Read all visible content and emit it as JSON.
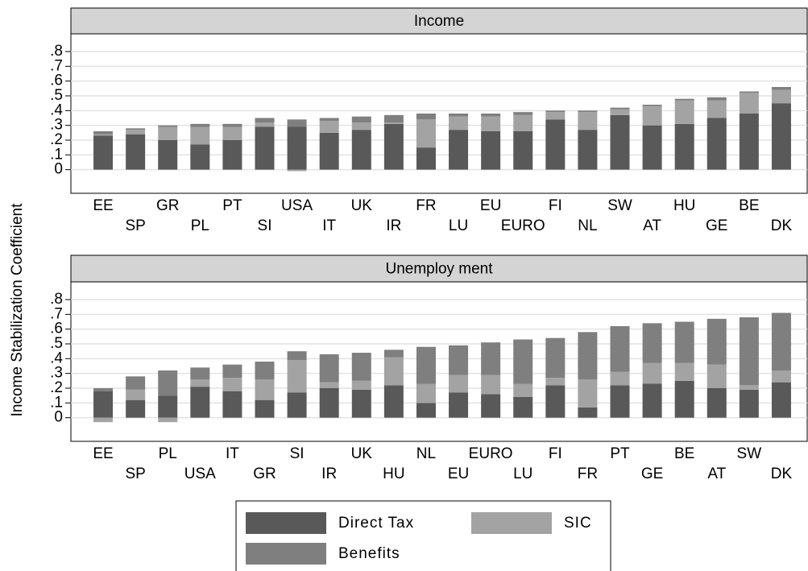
{
  "y_label": "Income Stabilization Coefficient",
  "chart_data": [
    {
      "type": "stacked-bar",
      "title": "Income",
      "categories": [
        "EE",
        "SP",
        "GR",
        "PL",
        "PT",
        "SI",
        "USA",
        "IT",
        "UK",
        "IR",
        "FR",
        "LU",
        "EU",
        "EURO",
        "FI",
        "NL",
        "SW",
        "AT",
        "HU",
        "GE",
        "BE",
        "DK"
      ],
      "series": [
        {
          "name": "Direct Tax",
          "color": "#595959",
          "values": [
            0.23,
            0.24,
            0.2,
            0.17,
            0.2,
            0.29,
            0.29,
            0.25,
            0.27,
            0.31,
            0.15,
            0.27,
            0.26,
            0.26,
            0.34,
            0.27,
            0.37,
            0.3,
            0.31,
            0.35,
            0.38,
            0.45
          ]
        },
        {
          "name": "SIC",
          "color": "#a3a3a3",
          "values": [
            0.01,
            0.03,
            0.09,
            0.12,
            0.09,
            0.03,
            -0.01,
            0.08,
            0.05,
            0.01,
            0.19,
            0.09,
            0.1,
            0.11,
            0.05,
            0.12,
            0.04,
            0.13,
            0.16,
            0.12,
            0.14,
            0.09
          ]
        },
        {
          "name": "Benefits",
          "color": "#7f7f7f",
          "values": [
            0.02,
            0.01,
            0.01,
            0.02,
            0.02,
            0.03,
            0.05,
            0.02,
            0.04,
            0.05,
            0.04,
            0.02,
            0.02,
            0.02,
            0.01,
            0.01,
            0.01,
            0.01,
            0.01,
            0.02,
            0.01,
            0.02
          ]
        }
      ],
      "ylim": [
        -0.16,
        0.92
      ],
      "yticks": [
        {
          "value": 0,
          "label": "0"
        },
        {
          "value": 0.1,
          "label": ".1"
        },
        {
          "value": 0.2,
          "label": ".2"
        },
        {
          "value": 0.3,
          "label": ".3"
        },
        {
          "value": 0.4,
          "label": ".4"
        },
        {
          "value": 0.5,
          "label": ".5"
        },
        {
          "value": 0.6,
          "label": ".6"
        },
        {
          "value": 0.7,
          "label": ".7"
        },
        {
          "value": 0.8,
          "label": ".8"
        }
      ],
      "grid": true
    },
    {
      "type": "stacked-bar",
      "title": "Unemploy ment",
      "categories": [
        "EE",
        "SP",
        "PL",
        "USA",
        "IT",
        "GR",
        "SI",
        "IR",
        "UK",
        "HU",
        "NL",
        "EU",
        "EURO",
        "LU",
        "FI",
        "FR",
        "PT",
        "GE",
        "BE",
        "AT",
        "SW",
        "DK"
      ],
      "series": [
        {
          "name": "Direct Tax",
          "color": "#595959",
          "values": [
            0.18,
            0.12,
            0.15,
            0.21,
            0.18,
            0.12,
            0.17,
            0.2,
            0.19,
            0.22,
            0.1,
            0.17,
            0.16,
            0.14,
            0.22,
            0.07,
            0.22,
            0.23,
            0.25,
            0.2,
            0.19,
            0.24
          ]
        },
        {
          "name": "SIC",
          "color": "#a3a3a3",
          "values": [
            -0.03,
            0.07,
            -0.03,
            0.05,
            0.09,
            0.14,
            0.22,
            0.04,
            0.06,
            0.19,
            0.13,
            0.12,
            0.13,
            0.09,
            0.05,
            0.19,
            0.09,
            0.14,
            0.12,
            0.16,
            0.03,
            0.08
          ]
        },
        {
          "name": "Benefits",
          "color": "#7f7f7f",
          "values": [
            0.02,
            0.09,
            0.17,
            0.08,
            0.09,
            0.12,
            0.06,
            0.19,
            0.19,
            0.05,
            0.25,
            0.2,
            0.22,
            0.3,
            0.27,
            0.32,
            0.31,
            0.27,
            0.28,
            0.31,
            0.46,
            0.39
          ]
        }
      ],
      "ylim": [
        -0.16,
        0.92
      ],
      "yticks": [
        {
          "value": 0,
          "label": "0"
        },
        {
          "value": 0.1,
          "label": ".1"
        },
        {
          "value": 0.2,
          "label": ".2"
        },
        {
          "value": 0.3,
          "label": ".3"
        },
        {
          "value": 0.4,
          "label": ".4"
        },
        {
          "value": 0.5,
          "label": ".5"
        },
        {
          "value": 0.6,
          "label": ".6"
        },
        {
          "value": 0.7,
          "label": ".7"
        },
        {
          "value": 0.8,
          "label": ".8"
        }
      ],
      "grid": true
    }
  ]
}
